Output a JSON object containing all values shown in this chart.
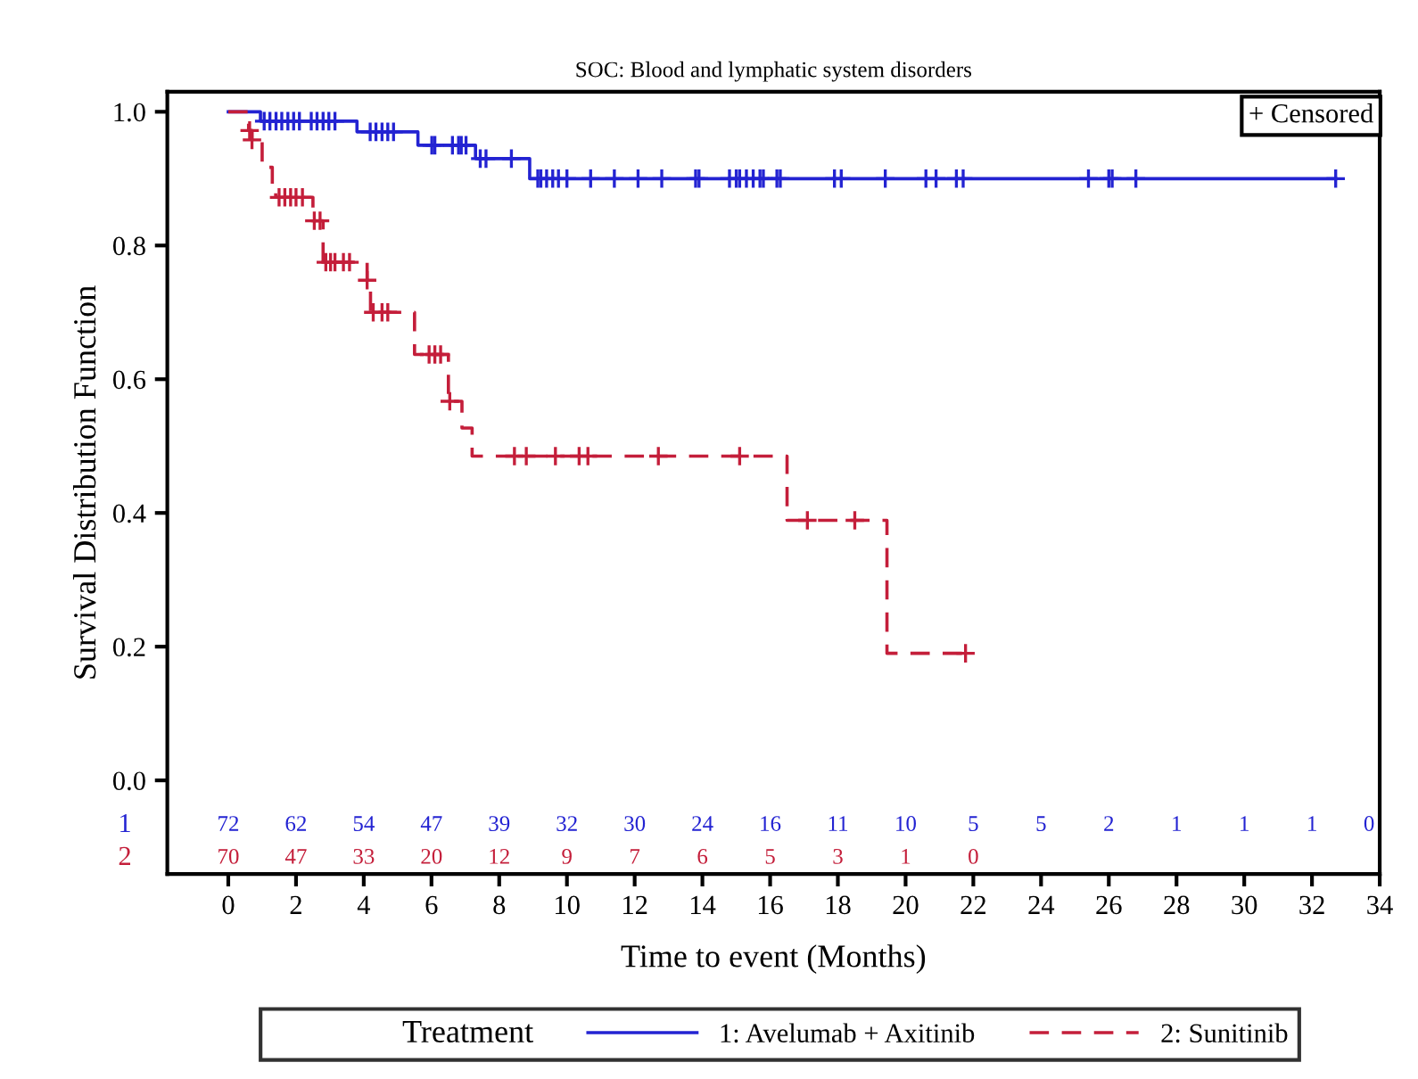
{
  "chart_data": {
    "type": "step",
    "title": "SOC: Blood and lymphatic system disorders",
    "xlabel": "Time to event (Months)",
    "ylabel": "Survival Distribution Function",
    "legend_title": "Treatment",
    "legend": "bottom",
    "xlim": [
      -1.8,
      34
    ],
    "xticks": [
      0,
      2,
      4,
      6,
      8,
      10,
      12,
      14,
      16,
      18,
      20,
      22,
      24,
      26,
      28,
      30,
      32,
      34
    ],
    "ylim": [
      -0.14,
      1.03
    ],
    "yticks": [
      {
        "value": 0,
        "label": "0.0"
      },
      {
        "value": 0.2,
        "label": "0.2"
      },
      {
        "value": 0.4,
        "label": "0.4"
      },
      {
        "value": 0.6,
        "label": "0.6"
      },
      {
        "value": 0.8,
        "label": "0.8"
      },
      {
        "value": 1,
        "label": "1.0"
      }
    ],
    "grid": false,
    "series": [
      {
        "name": "1: Avelumab + Axitinib",
        "color": "#2323d2",
        "line_style": "solid",
        "x": [
          0,
          0.95,
          3.8,
          5.6,
          7.3,
          8.9,
          32.7
        ],
        "values": [
          1,
          0.986,
          0.97,
          0.95,
          0.93,
          0.9,
          0.9
        ]
      },
      {
        "name": "2: Sunitinib",
        "color": "#c41e3a",
        "line_style": "dashed",
        "x": [
          0,
          0.6,
          0.7,
          1.0,
          1.3,
          1.4,
          2.5,
          2.8,
          4.1,
          4.2,
          5.5,
          6.5,
          6.9,
          7.2,
          16.5,
          19.45,
          21.77
        ],
        "values": [
          1,
          0.972,
          0.958,
          0.917,
          0.89,
          0.872,
          0.837,
          0.775,
          0.748,
          0.7,
          0.637,
          0.567,
          0.527,
          0.485,
          0.389,
          0.19,
          0.19
        ]
      },
      {
        "type": "scatter",
        "marker": "cross",
        "color": "#2323d2",
        "x": [
          1.06,
          1.23,
          1.41,
          1.58,
          1.76,
          1.93,
          2.1,
          2.45,
          2.62,
          2.8,
          2.97,
          3.15,
          4.19,
          4.36,
          4.54,
          4.71,
          4.88,
          6.01,
          6.1,
          6.62,
          6.8,
          6.88,
          7.02,
          7.44,
          7.61,
          8.36,
          9.14,
          9.23,
          9.4,
          9.58,
          9.75,
          10.0,
          10.7,
          11.4,
          12.1,
          12.8,
          13.8,
          13.9,
          14.8,
          15.0,
          15.1,
          15.3,
          15.5,
          15.7,
          15.8,
          16.2,
          16.3,
          17.9,
          18.1,
          19.4,
          20.6,
          20.9,
          21.5,
          21.7,
          25.4,
          26.0,
          26.1,
          26.8,
          32.7
        ],
        "values": [
          0.986,
          0.986,
          0.986,
          0.986,
          0.986,
          0.986,
          0.986,
          0.986,
          0.986,
          0.986,
          0.986,
          0.986,
          0.97,
          0.97,
          0.97,
          0.97,
          0.97,
          0.95,
          0.95,
          0.95,
          0.95,
          0.95,
          0.95,
          0.93,
          0.93,
          0.93,
          0.9,
          0.9,
          0.9,
          0.9,
          0.9,
          0.9,
          0.9,
          0.9,
          0.9,
          0.9,
          0.9,
          0.9,
          0.9,
          0.9,
          0.9,
          0.9,
          0.9,
          0.9,
          0.9,
          0.9,
          0.9,
          0.9,
          0.9,
          0.9,
          0.9,
          0.9,
          0.9,
          0.9,
          0.9,
          0.9,
          0.9,
          0.9,
          0.9
        ]
      },
      {
        "type": "scatter",
        "marker": "cross",
        "color": "#c41e3a",
        "x": [
          0.63,
          0.7,
          1.5,
          1.67,
          1.84,
          2.0,
          2.19,
          2.54,
          2.71,
          2.88,
          3.02,
          3.15,
          3.4,
          3.58,
          4.1,
          4.28,
          4.54,
          4.71,
          5.93,
          6.1,
          6.27,
          6.54,
          8.45,
          8.8,
          9.66,
          10.36,
          10.62,
          12.7,
          15.1,
          17.1,
          18.5,
          21.77
        ],
        "values": [
          0.972,
          0.958,
          0.872,
          0.872,
          0.872,
          0.872,
          0.872,
          0.837,
          0.837,
          0.775,
          0.775,
          0.775,
          0.775,
          0.775,
          0.748,
          0.7,
          0.7,
          0.7,
          0.637,
          0.637,
          0.637,
          0.567,
          0.485,
          0.485,
          0.485,
          0.485,
          0.485,
          0.485,
          0.485,
          0.389,
          0.389,
          0.19
        ]
      }
    ],
    "annotations": [
      "+ Censored",
      "1",
      "72",
      "62",
      "54",
      "47",
      "39",
      "32",
      "30",
      "24",
      "16",
      "11",
      "10",
      "5",
      "5",
      "2",
      "1",
      "1",
      "1",
      "0",
      "2",
      "70",
      "47",
      "33",
      "20",
      "12",
      "9",
      "7",
      "6",
      "5",
      "3",
      "1",
      "0"
    ]
  }
}
